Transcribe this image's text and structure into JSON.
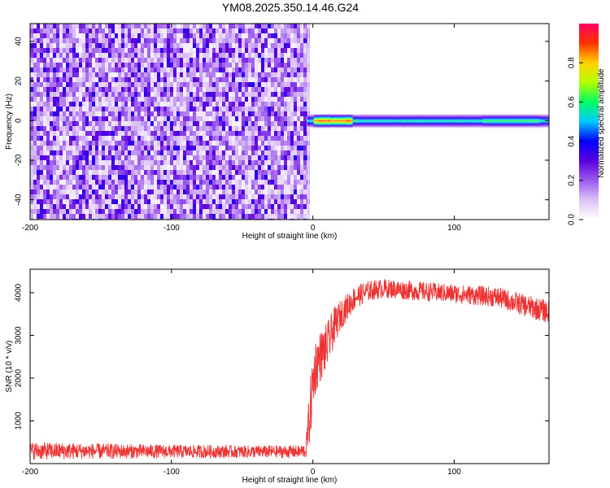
{
  "title": "YM08.2025.350.14.46.G24",
  "chart_data": [
    {
      "type": "heatmap",
      "title": "YM08.2025.350.14.46.G24",
      "xlabel": "Height of straight line (km)",
      "ylabel": "Frequency (Hz)",
      "xlim": [
        -200,
        167
      ],
      "ylim": [
        -50,
        49
      ],
      "xticks": [
        -200,
        -100,
        0,
        100
      ],
      "yticks": [
        -40,
        -20,
        0,
        20,
        40
      ],
      "colorbar": {
        "label": "Normalized spectral amplitude",
        "range": [
          0,
          1
        ],
        "ticks": [
          "0.0",
          "0.2",
          "0.4",
          "0.6",
          "0.8"
        ],
        "colors": [
          "#ffffff",
          "#dcc3f5",
          "#9c5af0",
          "#5a00dc",
          "#0000ff",
          "#00c8ff",
          "#00ff64",
          "#b4ff00",
          "#ffd200",
          "#ff3200",
          "#ff0064"
        ]
      },
      "noise_region": {
        "x_range": [
          -200,
          -4
        ],
        "amplitude_range": [
          0.05,
          0.35
        ]
      },
      "signal_band": {
        "x_range": [
          -4,
          167
        ],
        "center_freq": 0,
        "half_width_hz": 2.5,
        "peak_amplitude": 0.95,
        "peak_x_range": [
          0,
          28
        ]
      }
    },
    {
      "type": "line",
      "xlabel": "Height of straight line (km)",
      "ylabel": "SNR (10 * v/v)",
      "xlim": [
        -200,
        167
      ],
      "ylim": [
        0,
        4550
      ],
      "xticks": [
        -200,
        -100,
        0,
        100
      ],
      "yticks": [
        1000,
        2000,
        3000,
        4000
      ],
      "color": "#ee3333",
      "x": [
        -200,
        -150,
        -100,
        -50,
        -10,
        -5,
        -2,
        0,
        2,
        5,
        10,
        15,
        20,
        30,
        40,
        50,
        70,
        90,
        110,
        130,
        150,
        167
      ],
      "y": [
        300,
        290,
        285,
        280,
        280,
        300,
        1200,
        1900,
        2300,
        2500,
        2750,
        3200,
        3500,
        3900,
        4050,
        4100,
        4050,
        4000,
        3950,
        3900,
        3700,
        3550
      ],
      "spread": [
        420,
        360,
        320,
        300,
        300,
        350,
        1500,
        1400,
        1300,
        1200,
        1100,
        900,
        700,
        550,
        480,
        450,
        450,
        450,
        450,
        480,
        520,
        550
      ]
    }
  ]
}
